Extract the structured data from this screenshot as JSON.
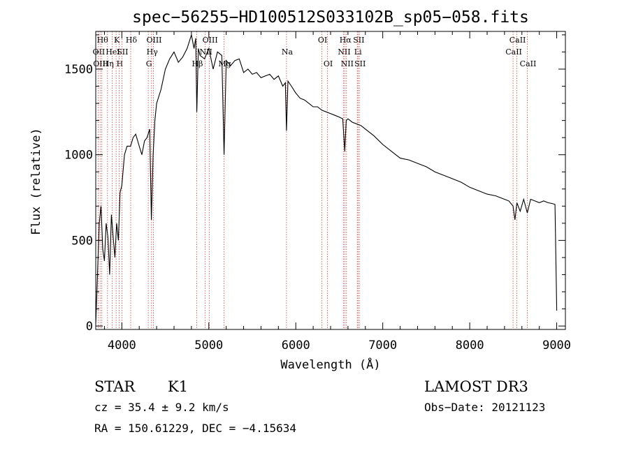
{
  "chart_data": {
    "type": "line",
    "title": "spec−56255−HD100512S033102B_sp05−058.fits",
    "xlabel": "Wavelength (Å)",
    "ylabel": "Flux (relative)",
    "xlim": [
      3700,
      9100
    ],
    "ylim": [
      -20,
      1720
    ],
    "xticks": [
      4000,
      5000,
      6000,
      7000,
      8000,
      9000
    ],
    "yticks": [
      0,
      500,
      1000,
      1500
    ],
    "series": [
      {
        "name": "spectrum",
        "x": [
          3700,
          3720,
          3740,
          3760,
          3780,
          3800,
          3820,
          3840,
          3860,
          3880,
          3900,
          3920,
          3940,
          3960,
          3980,
          4000,
          4030,
          4060,
          4100,
          4130,
          4160,
          4200,
          4230,
          4260,
          4290,
          4320,
          4340,
          4360,
          4380,
          4400,
          4450,
          4500,
          4550,
          4600,
          4650,
          4700,
          4750,
          4800,
          4830,
          4850,
          4862,
          4880,
          4900,
          4950,
          5000,
          5050,
          5100,
          5150,
          5175,
          5200,
          5250,
          5300,
          5350,
          5400,
          5450,
          5500,
          5550,
          5600,
          5650,
          5700,
          5750,
          5800,
          5850,
          5880,
          5893,
          5910,
          5950,
          6000,
          6050,
          6100,
          6150,
          6200,
          6250,
          6300,
          6350,
          6400,
          6450,
          6500,
          6540,
          6563,
          6580,
          6600,
          6650,
          6700,
          6750,
          6800,
          6900,
          7000,
          7100,
          7200,
          7300,
          7400,
          7500,
          7600,
          7700,
          7800,
          7900,
          8000,
          8100,
          8200,
          8300,
          8400,
          8450,
          8498,
          8520,
          8542,
          8580,
          8620,
          8662,
          8700,
          8750,
          8800,
          8850,
          8900,
          8950,
          8980,
          9000
        ],
        "y": [
          10,
          300,
          600,
          700,
          450,
          380,
          600,
          520,
          300,
          650,
          520,
          400,
          600,
          500,
          780,
          820,
          1000,
          1050,
          1050,
          1100,
          1120,
          1050,
          1000,
          1080,
          1100,
          1150,
          620,
          1000,
          1200,
          1300,
          1380,
          1500,
          1560,
          1600,
          1540,
          1570,
          1620,
          1700,
          1620,
          1680,
          1250,
          1620,
          1580,
          1560,
          1620,
          1500,
          1600,
          1580,
          1000,
          1550,
          1520,
          1550,
          1560,
          1480,
          1500,
          1470,
          1480,
          1450,
          1460,
          1470,
          1440,
          1460,
          1400,
          1420,
          1140,
          1430,
          1400,
          1360,
          1330,
          1320,
          1300,
          1280,
          1280,
          1260,
          1250,
          1240,
          1230,
          1220,
          1210,
          1020,
          1200,
          1210,
          1190,
          1180,
          1170,
          1150,
          1110,
          1060,
          1020,
          980,
          970,
          950,
          930,
          900,
          880,
          860,
          840,
          810,
          790,
          770,
          760,
          740,
          730,
          700,
          620,
          720,
          670,
          740,
          660,
          740,
          730,
          720,
          730,
          720,
          715,
          710,
          90
        ]
      }
    ],
    "line_markers": [
      {
        "wl": 3727,
        "label": "OII",
        "row": 2
      },
      {
        "wl": 3750,
        "label": "OIII",
        "row": 3
      },
      {
        "wl": 3770,
        "label": "Hθ",
        "row": 1
      },
      {
        "wl": 3835,
        "label": "Hη",
        "row": 3
      },
      {
        "wl": 3889,
        "label": "HeI",
        "row": 2
      },
      {
        "wl": 3934,
        "label": "K",
        "row": 1
      },
      {
        "wl": 3969,
        "label": "H",
        "row": 3
      },
      {
        "wl": 4000,
        "label": "SII",
        "row": 2
      },
      {
        "wl": 4102,
        "label": "Hδ",
        "row": 1
      },
      {
        "wl": 4304,
        "label": "G",
        "row": 3
      },
      {
        "wl": 4341,
        "label": "Hγ",
        "row": 2
      },
      {
        "wl": 4363,
        "label": "OIII",
        "row": 1
      },
      {
        "wl": 4861,
        "label": "Hβ",
        "row": 3
      },
      {
        "wl": 4959,
        "label": "NII",
        "row": 2
      },
      {
        "wl": 5007,
        "label": "OIII",
        "row": 1
      },
      {
        "wl": 5175,
        "label": "Mg",
        "row": 3
      },
      {
        "wl": 5893,
        "label": "Na",
        "row": 2
      },
      {
        "wl": 6300,
        "label": "OI",
        "row": 1
      },
      {
        "wl": 6364,
        "label": "OI",
        "row": 3
      },
      {
        "wl": 6548,
        "label": "NII",
        "row": 2
      },
      {
        "wl": 6563,
        "label": "Hα",
        "row": 1
      },
      {
        "wl": 6583,
        "label": "NII",
        "row": 3
      },
      {
        "wl": 6707,
        "label": "Li",
        "row": 2
      },
      {
        "wl": 6716,
        "label": "SII",
        "row": 1
      },
      {
        "wl": 6731,
        "label": "SII",
        "row": 3
      },
      {
        "wl": 8498,
        "label": "CaII",
        "row": 2
      },
      {
        "wl": 8542,
        "label": "CaII",
        "row": 1
      },
      {
        "wl": 8662,
        "label": "CaII",
        "row": 3
      }
    ]
  },
  "info": {
    "class": "STAR",
    "subclass": "K1",
    "survey": "LAMOST DR3",
    "cz": "cz = 35.4 ± 9.2 km/s",
    "obsdate": "Obs−Date: 20121123",
    "coords": "RA = 150.61229, DEC =  −4.15634"
  }
}
